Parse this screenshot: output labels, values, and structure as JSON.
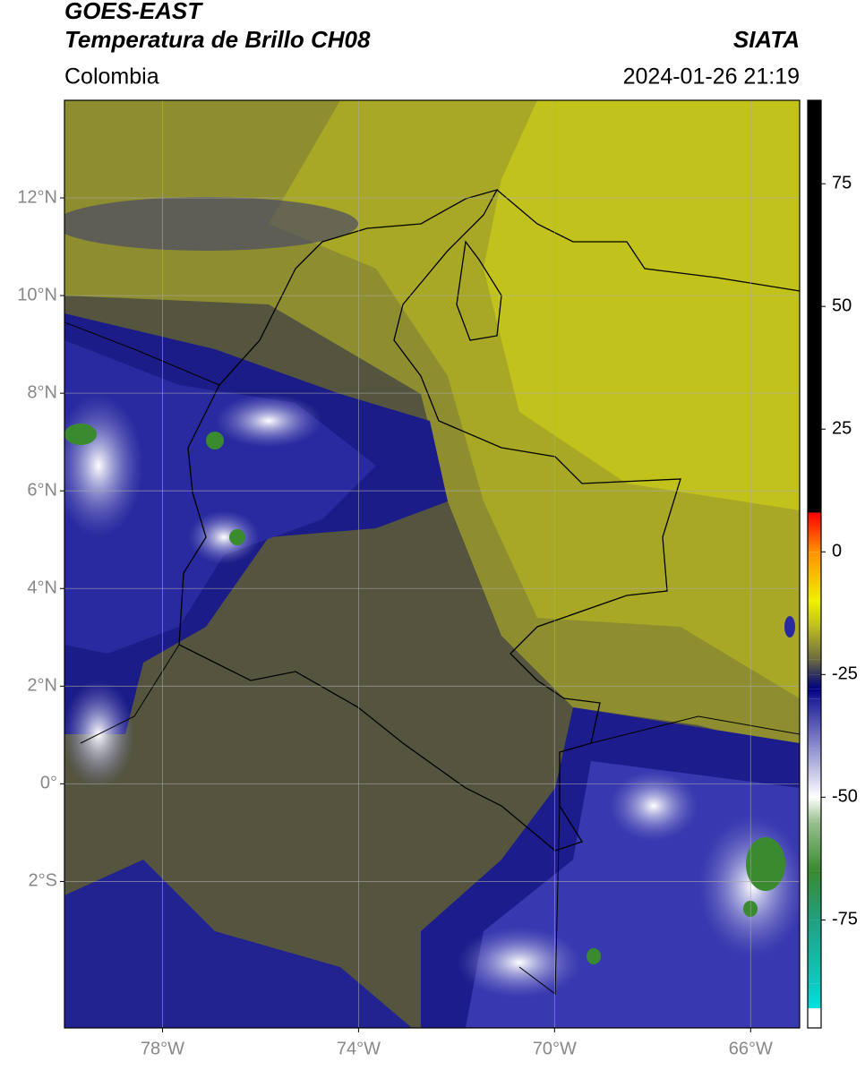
{
  "header": {
    "line1": "GOES-EAST",
    "line2": "Temperatura de Brillo CH08",
    "source": "SIATA",
    "region": "Colombia",
    "datetime": "2024-01-26 21:19"
  },
  "map": {
    "xlim": [
      -80,
      -65
    ],
    "ylim": [
      -5,
      14
    ],
    "xticks": [
      {
        "value": -78,
        "label": "78°W"
      },
      {
        "value": -74,
        "label": "74°W"
      },
      {
        "value": -70,
        "label": "70°W"
      },
      {
        "value": -66,
        "label": "66°W"
      }
    ],
    "yticks": [
      {
        "value": 12,
        "label": "12°N"
      },
      {
        "value": 10,
        "label": "10°N"
      },
      {
        "value": 8,
        "label": "8°N"
      },
      {
        "value": 6,
        "label": "6°N"
      },
      {
        "value": 4,
        "label": "4°N"
      },
      {
        "value": 2,
        "label": "2°N"
      },
      {
        "value": 0,
        "label": "0°"
      },
      {
        "value": -2,
        "label": "2°S"
      }
    ],
    "grid": true
  },
  "colorbar": {
    "lim": [
      -97,
      92
    ],
    "ticks": [
      75,
      50,
      25,
      0,
      -25,
      -50,
      -75
    ],
    "stops": [
      {
        "value": -97,
        "color": "#ffffff"
      },
      {
        "value": -93,
        "color": "#ffffff"
      },
      {
        "value": -93,
        "color": "#00e0e0"
      },
      {
        "value": -88,
        "color": "#10c8c0"
      },
      {
        "value": -75,
        "color": "#20a080"
      },
      {
        "value": -65,
        "color": "#3a8a30"
      },
      {
        "value": -55,
        "color": "#9ac090"
      },
      {
        "value": -50,
        "color": "#ffffff"
      },
      {
        "value": -40,
        "color": "#9090d0"
      },
      {
        "value": -30,
        "color": "#20209a"
      },
      {
        "value": -28,
        "color": "#000080"
      },
      {
        "value": -25,
        "color": "#303060"
      },
      {
        "value": -22,
        "color": "#6a6a40"
      },
      {
        "value": -15,
        "color": "#c0c020"
      },
      {
        "value": -10,
        "color": "#f0f000"
      },
      {
        "value": 0,
        "color": "#ff9000"
      },
      {
        "value": 8,
        "color": "#ff0000"
      },
      {
        "value": 8,
        "color": "#000000"
      },
      {
        "value": 92,
        "color": "#000000"
      }
    ]
  }
}
